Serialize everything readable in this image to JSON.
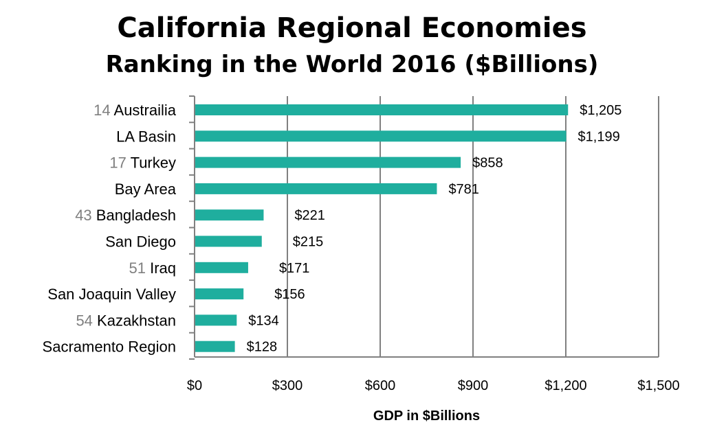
{
  "chart_data": {
    "type": "bar",
    "orientation": "horizontal",
    "title": "California Regional Economies",
    "subtitle": "Ranking in the World 2016 ($Billions)",
    "xlabel": "GDP in $Billions",
    "ylabel": "",
    "xlim": [
      0,
      1500
    ],
    "x_ticks": [
      0,
      300,
      600,
      900,
      1200,
      1500
    ],
    "x_tick_labels": [
      "$0",
      "$300",
      "$600",
      "$900",
      "$1,200",
      "$1,500"
    ],
    "grid": true,
    "bar_color": "#1fae9e",
    "grid_color": "#808080",
    "rank_color": "#7f7f7f",
    "categories": [
      {
        "rank": "14",
        "name": "Austrailia",
        "value": 1205,
        "label": "$1,205"
      },
      {
        "rank": "",
        "name": "LA Basin",
        "value": 1199,
        "label": "$1,199"
      },
      {
        "rank": "17",
        "name": "Turkey",
        "value": 858,
        "label": "$858"
      },
      {
        "rank": "",
        "name": "Bay Area",
        "value": 781,
        "label": "$781"
      },
      {
        "rank": "43",
        "name": "Bangladesh",
        "value": 221,
        "label": "$221"
      },
      {
        "rank": "",
        "name": "San Diego",
        "value": 215,
        "label": "$215"
      },
      {
        "rank": "51",
        "name": "Iraq",
        "value": 171,
        "label": "$171"
      },
      {
        "rank": "",
        "name": "San Joaquin Valley",
        "value": 156,
        "label": "$156"
      },
      {
        "rank": "54",
        "name": "Kazakhstan",
        "value": 134,
        "label": "$134"
      },
      {
        "rank": "",
        "name": "Sacramento Region",
        "value": 128,
        "label": "$128"
      }
    ]
  }
}
